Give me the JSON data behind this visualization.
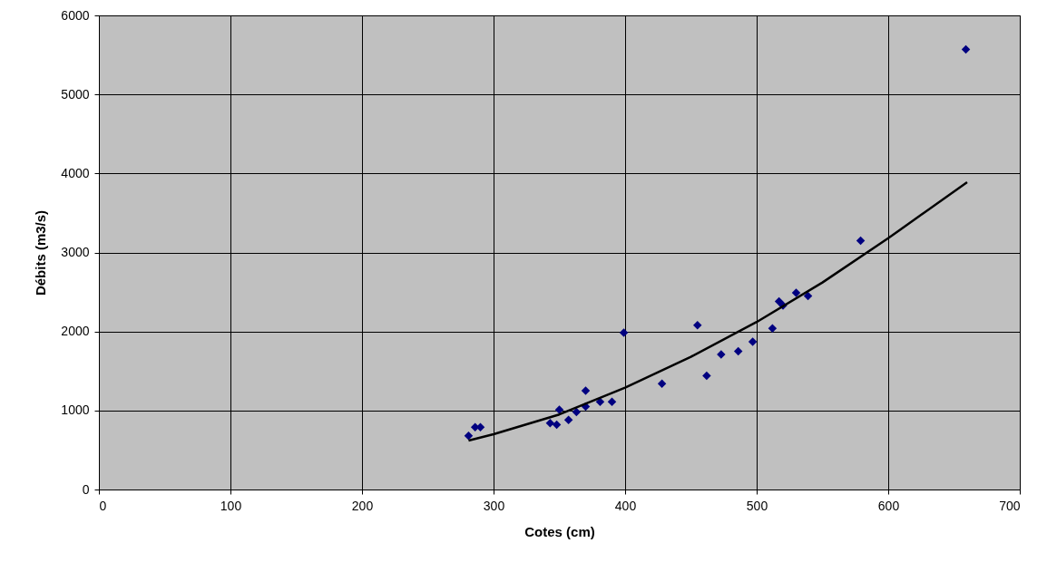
{
  "chart_data": {
    "type": "scatter",
    "xlabel": "Cotes (cm)",
    "ylabel": "Débits (m3/s)",
    "xlim": [
      0,
      700
    ],
    "xticks": [
      0,
      100,
      200,
      300,
      400,
      500,
      600,
      700
    ],
    "ylim": [
      0,
      6000
    ],
    "yticks": [
      0,
      1000,
      2000,
      3000,
      4000,
      5000,
      6000
    ],
    "grid": true,
    "marker": "diamond",
    "series": [
      {
        "type": "scatter",
        "color": "#000080",
        "x": [
          281,
          286,
          290,
          343,
          348,
          350,
          357,
          363,
          370,
          370,
          381,
          390,
          399,
          428,
          455,
          462,
          473,
          486,
          497,
          512,
          517,
          520,
          530,
          539,
          579,
          659
        ],
        "values": [
          680,
          790,
          790,
          840,
          820,
          1010,
          880,
          980,
          1050,
          1250,
          1110,
          1110,
          1985,
          1340,
          2080,
          1440,
          1710,
          1750,
          1870,
          2040,
          2380,
          2330,
          2490,
          2450,
          3150,
          5570
        ]
      },
      {
        "type": "line",
        "color": "#000000",
        "line_style": "solid",
        "marker": "none",
        "x": [
          281,
          300,
          350,
          400,
          450,
          500,
          550,
          600,
          660
        ],
        "values": [
          620,
          700,
          950,
          1290,
          1680,
          2120,
          2620,
          3180,
          3890
        ]
      }
    ]
  }
}
